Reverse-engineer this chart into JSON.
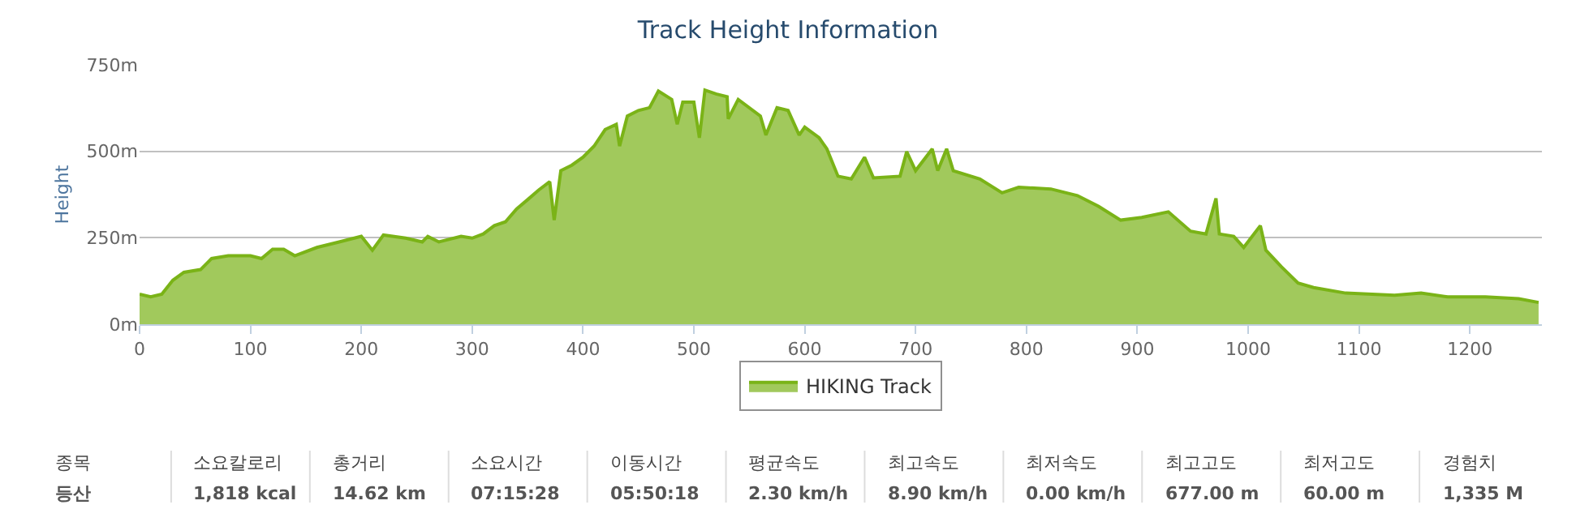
{
  "chart_data": {
    "type": "area",
    "title": "Track Height Information",
    "ylabel": "Height",
    "x": [
      0,
      10,
      20,
      30,
      40,
      55,
      65,
      80,
      100,
      110,
      120,
      130,
      140,
      160,
      180,
      200,
      210,
      220,
      240,
      255,
      260,
      270,
      290,
      300,
      310,
      320,
      330,
      340,
      350,
      360,
      370,
      374,
      380,
      390,
      400,
      410,
      420,
      430,
      433,
      440,
      450,
      460,
      468,
      480,
      485,
      490,
      500,
      505,
      510,
      520,
      530,
      531,
      540,
      560,
      565,
      575,
      585,
      595,
      600,
      613,
      620,
      630,
      642,
      654,
      662,
      686,
      692,
      700,
      715,
      720,
      728,
      734,
      758,
      778,
      793,
      822,
      846,
      865,
      885,
      904,
      928,
      948,
      962,
      971,
      974,
      987,
      996,
      1011,
      1016,
      1030,
      1045,
      1059,
      1088,
      1132,
      1156,
      1180,
      1214,
      1244,
      1262
    ],
    "series": [
      {
        "name": "HIKING Track",
        "color": "#7ab317",
        "values": [
          87,
          79,
          87,
          127,
          150,
          158,
          190,
          198,
          198,
          190,
          217,
          217,
          198,
          222,
          238,
          254,
          214,
          258,
          249,
          238,
          254,
          238,
          254,
          249,
          261,
          285,
          296,
          333,
          360,
          388,
          412,
          301,
          444,
          460,
          483,
          515,
          563,
          578,
          515,
          602,
          618,
          626,
          674,
          650,
          578,
          642,
          642,
          539,
          677,
          666,
          658,
          594,
          650,
          602,
          547,
          626,
          618,
          547,
          570,
          539,
          507,
          428,
          420,
          483,
          423,
          428,
          499,
          444,
          507,
          444,
          507,
          444,
          420,
          380,
          396,
          391,
          372,
          341,
          301,
          309,
          325,
          269,
          261,
          364,
          261,
          254,
          222,
          285,
          214,
          166,
          119,
          106,
          90,
          84,
          90,
          79,
          79,
          74,
          63
        ]
      }
    ],
    "xlim": [
      0,
      1265
    ],
    "ylim": [
      0,
      750
    ],
    "xticks": [
      0,
      100,
      200,
      300,
      400,
      500,
      600,
      700,
      800,
      900,
      1000,
      1100,
      1200
    ],
    "yticks": [
      {
        "value": 0,
        "label": "0m"
      },
      {
        "value": 250,
        "label": "250m"
      },
      {
        "value": 500,
        "label": "500m"
      },
      {
        "value": 750,
        "label": "750m"
      }
    ],
    "grid": "y",
    "legend": "bottom",
    "marker": "none",
    "annotations": [
      "종목",
      "등산",
      "소요칼로리",
      "1,818 kcal",
      "총거리",
      "14.62 km",
      "소요시간",
      "07:15:28",
      "이동시간",
      "05:50:18",
      "평균속도",
      "2.30 km/h",
      "최고속도",
      "8.90 km/h",
      "최저속도",
      "0.00 km/h",
      "최고고도",
      "677.00 m",
      "최저고도",
      "60.00 m",
      "경험치",
      "1,335 M"
    ]
  }
}
